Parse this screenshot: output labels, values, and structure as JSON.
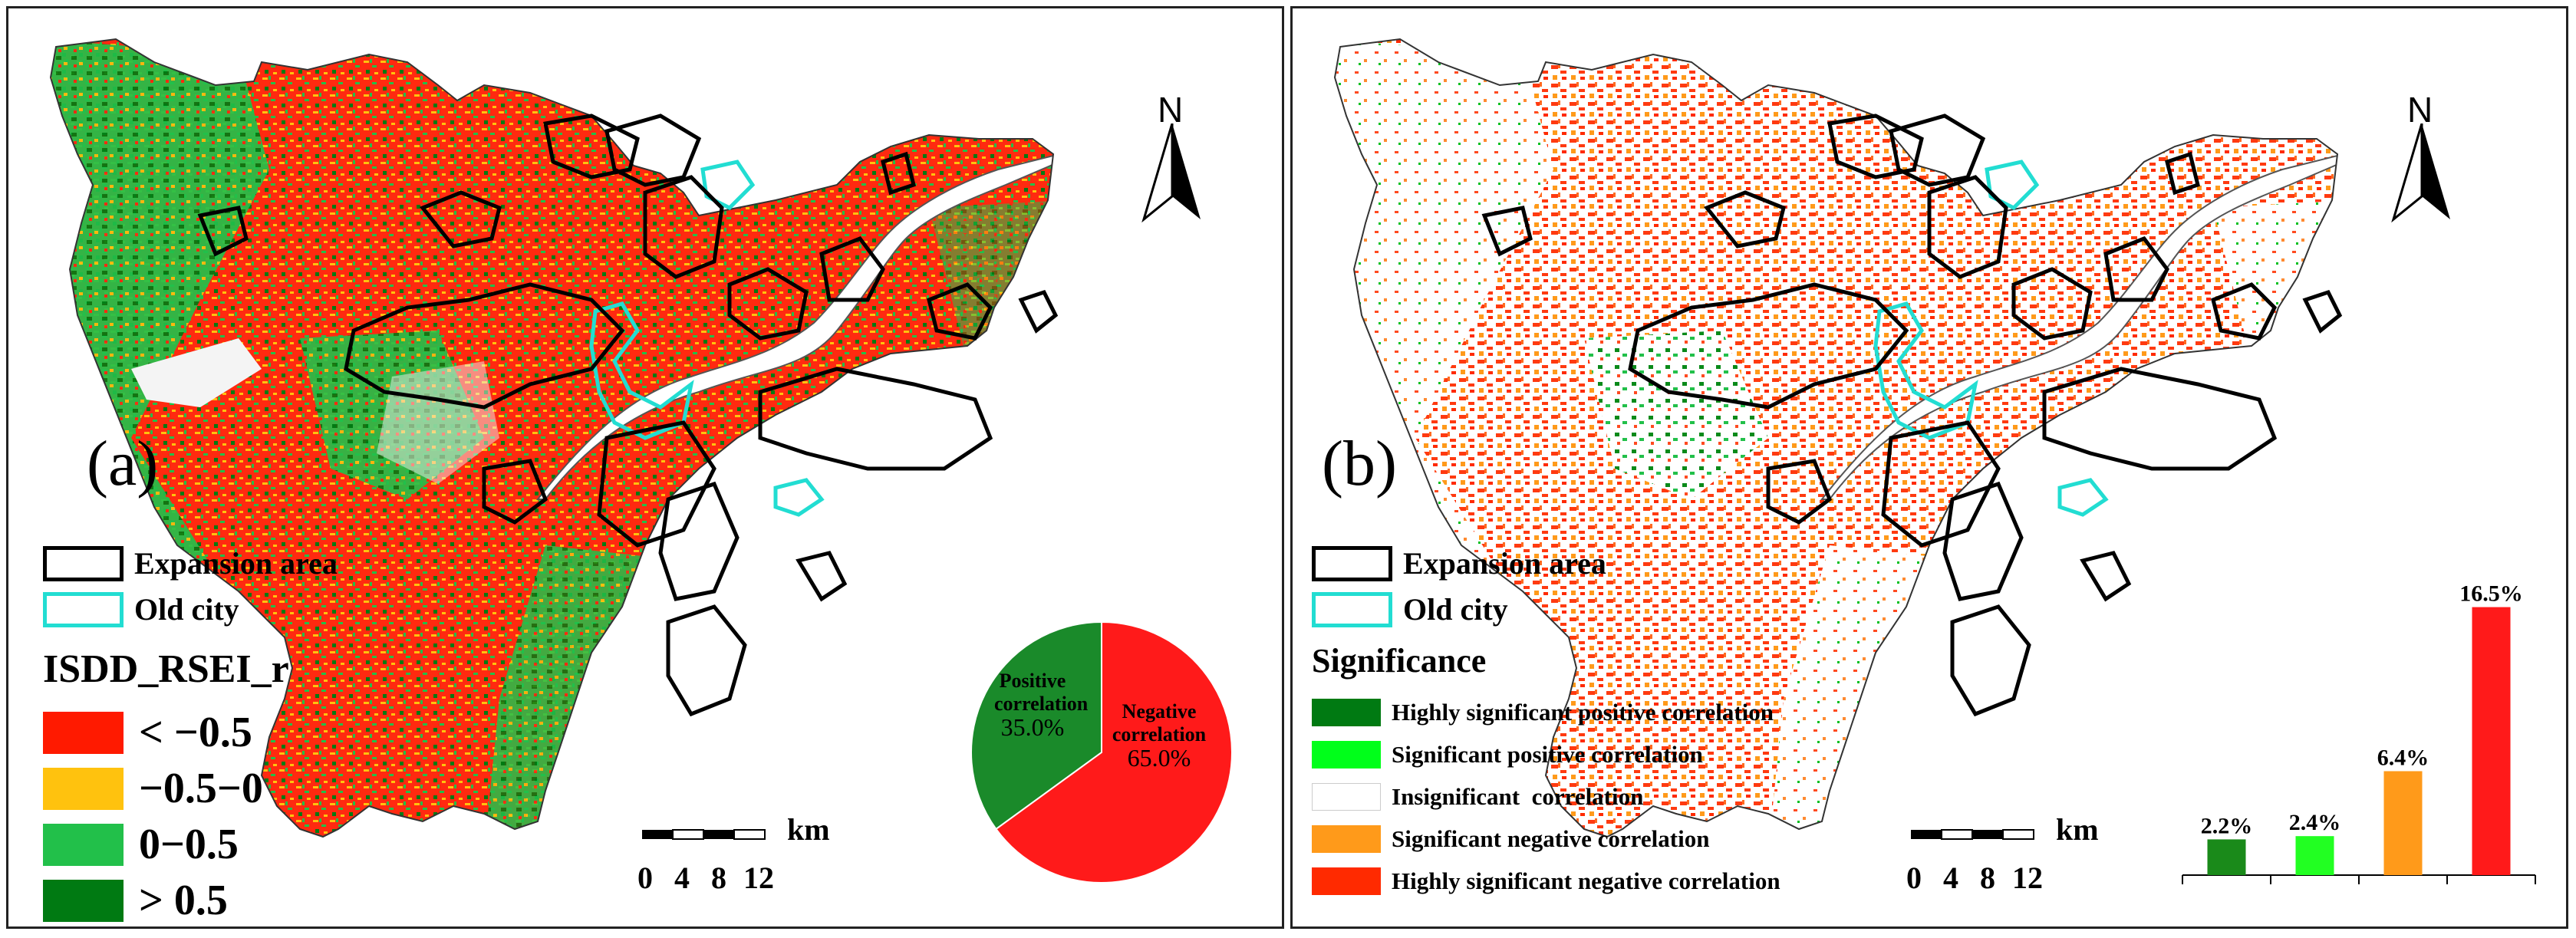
{
  "colors": {
    "strong_red": "#ff1a00",
    "yellow": "#ffc20e",
    "light_green": "#22c04a",
    "dark_green": "#007a12",
    "bright_green": "#00ff1a",
    "orange": "#ff9a1a",
    "sig_red": "#ff2a00",
    "cyan": "#22ddd2",
    "boundary": "#333333"
  },
  "panel_a": {
    "label": "(a)",
    "north": "N",
    "legend": {
      "expansion": "Expansion area",
      "old_city": "Old city",
      "title": "ISDD_RSEI_r",
      "classes": [
        {
          "label": "< −0.5",
          "color": "#ff1a00"
        },
        {
          "label": "−0.5−0",
          "color": "#ffc20e"
        },
        {
          "label": "0−0.5",
          "color": "#22c04a"
        },
        {
          "label": "> 0.5",
          "color": "#007a12"
        }
      ]
    },
    "scale": {
      "unit": "km",
      "ticks": [
        "0",
        "4",
        "8",
        "12"
      ]
    },
    "pie": {
      "positive_label_1": "Positive",
      "positive_label_2": "correlation",
      "positive_value": "35.0%",
      "negative_label_1": "Negative",
      "negative_label_2": "correlation",
      "negative_value": "65.0%"
    }
  },
  "panel_b": {
    "label": "(b)",
    "north": "N",
    "legend": {
      "expansion": "Expansion area",
      "old_city": "Old city",
      "title": "Significance",
      "classes": [
        {
          "label": "Highly significant positive correlation",
          "color": "#007a12"
        },
        {
          "label": "Significant positive correlation",
          "color": "#00ff1a"
        },
        {
          "label": "Insignificant  correlation",
          "color": "#ffffff"
        },
        {
          "label": "Significant negative correlation",
          "color": "#ff9a1a"
        },
        {
          "label": "Highly significant negative correlation",
          "color": "#ff2a00"
        }
      ]
    },
    "scale": {
      "unit": "km",
      "ticks": [
        "0",
        "4",
        "8",
        "12"
      ]
    }
  },
  "chart_data": [
    {
      "type": "pie",
      "labels": [
        "Positive correlation",
        "Negative correlation"
      ],
      "values": [
        35.0,
        65.0
      ],
      "colors": [
        "#1a8a2a",
        "#ff1a1a"
      ]
    },
    {
      "type": "bar",
      "categories": [
        "Highly significant positive correlation",
        "Significant positive correlation",
        "Significant negative correlation",
        "Highly significant negative correlation"
      ],
      "values": [
        2.2,
        2.4,
        6.4,
        16.5
      ],
      "value_labels": [
        "2.2%",
        "2.4%",
        "6.4%",
        "16.5%"
      ],
      "colors": [
        "#1a8a1a",
        "#22ff22",
        "#ff9a1a",
        "#ff1a1a"
      ]
    }
  ]
}
